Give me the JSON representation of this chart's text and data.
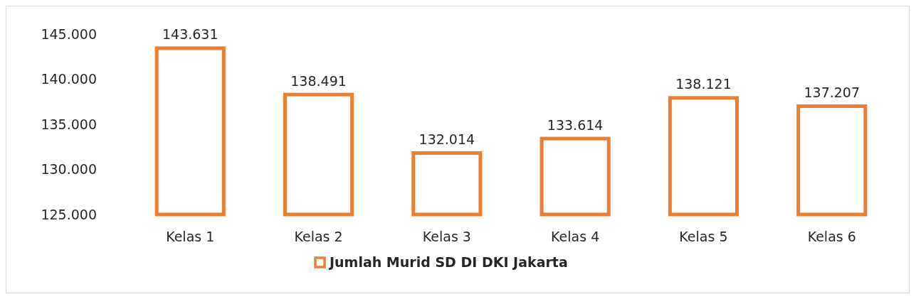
{
  "chart_data": {
    "type": "bar",
    "categories": [
      "Kelas 1",
      "Kelas 2",
      "Kelas 3",
      "Kelas 4",
      "Kelas 5",
      "Kelas 6"
    ],
    "series": [
      {
        "name": "Jumlah Murid SD DI DKI Jakarta",
        "color": "#ed7d31",
        "values": [
          143631,
          138491,
          132014,
          133614,
          138121,
          137207
        ],
        "value_labels": [
          "143.631",
          "138.491",
          "132.014",
          "133.614",
          "138.121",
          "137.207"
        ]
      }
    ],
    "ylim": [
      125000,
      145000
    ],
    "yticks": [
      {
        "value": 125000,
        "label": "125.000"
      },
      {
        "value": 130000,
        "label": "130.000"
      },
      {
        "value": 135000,
        "label": "135.000"
      },
      {
        "value": 140000,
        "label": "140.000"
      },
      {
        "value": 145000,
        "label": "145.000"
      }
    ],
    "grid": false,
    "legend": "bottom"
  }
}
